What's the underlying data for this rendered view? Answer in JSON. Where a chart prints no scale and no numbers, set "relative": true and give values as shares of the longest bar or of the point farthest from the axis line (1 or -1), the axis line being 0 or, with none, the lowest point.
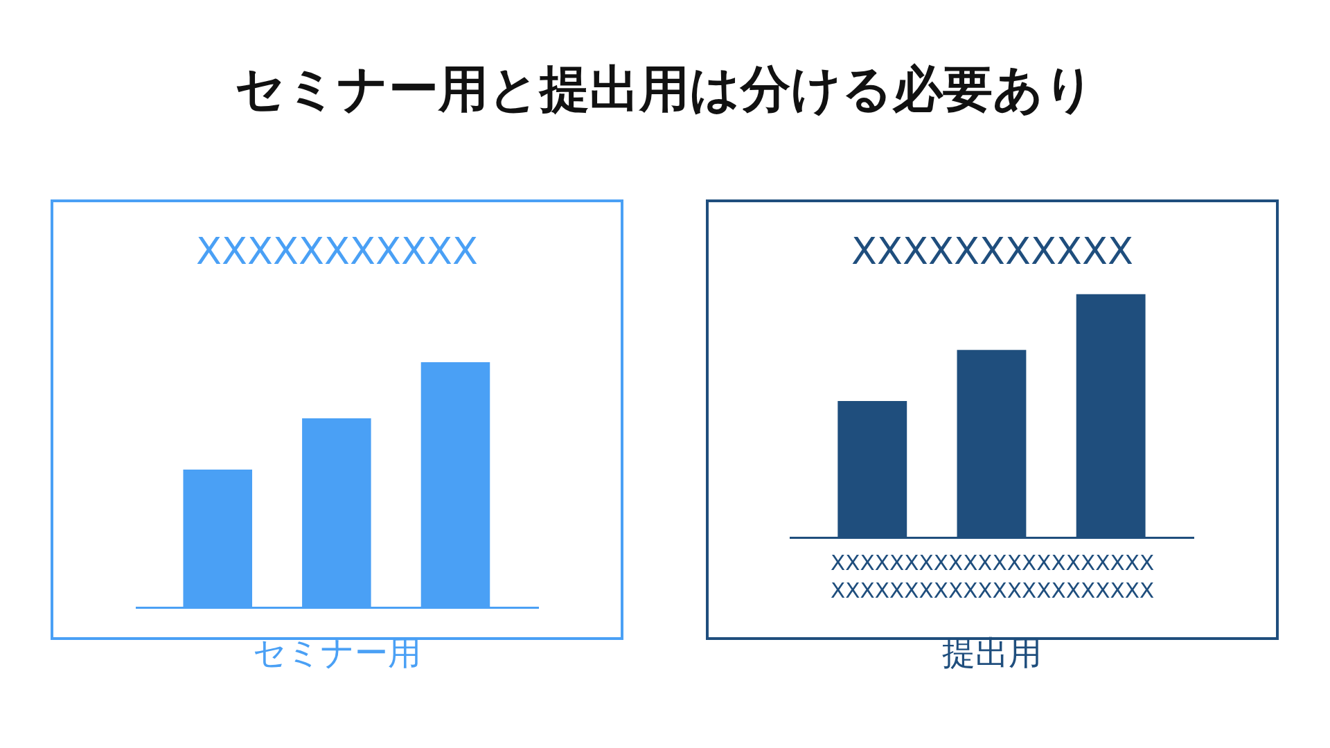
{
  "chart_data": [
    {
      "type": "other",
      "title": "セミナー用と提出用は分ける必要あり"
    },
    {
      "type": "bar",
      "title": "XXXXXXXXXXX",
      "categories": [
        null,
        null,
        null
      ],
      "values": [
        0.56,
        0.77,
        1
      ],
      "color": "#4aa0f5",
      "relative": true,
      "annotations": [
        "セミナー用"
      ]
    },
    {
      "type": "bar",
      "title": "XXXXXXXXXXX",
      "xlabel": "XXXXXXXXXXXXXXXXXXXXXX\nXXXXXXXXXXXXXXXXXXXXXX",
      "categories": [
        null,
        null,
        null
      ],
      "values": [
        0.56,
        0.77,
        1
      ],
      "color": "#1f4e7d",
      "relative": true,
      "annotations": [
        "提出用"
      ]
    }
  ]
}
